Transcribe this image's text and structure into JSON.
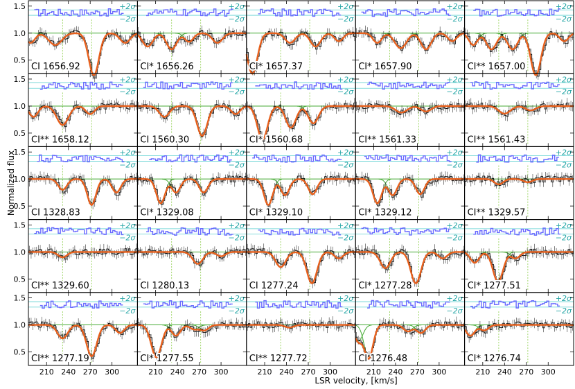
{
  "chart_data": {
    "type": "line",
    "xlabel": "LSR velocity, [km/s]",
    "ylabel": "Normalized flux",
    "xlim": [
      185,
      335
    ],
    "ylim": [
      0.25,
      1.6
    ],
    "xticks": [
      "210",
      "240",
      "270",
      "300"
    ],
    "yticks": [
      "0.5",
      "1.0",
      "1.5"
    ],
    "sigma_labels": [
      "+2σ",
      "−2σ"
    ],
    "component_velocities": [
      232,
      272
    ],
    "grid": false,
    "colors": {
      "data": "#000000",
      "fit": "#e8601c",
      "components": "#44aa33",
      "residuals": "#6a6aff",
      "sigma_lines": "#5fd0d0",
      "markers": "#88cc44"
    },
    "panels": [
      {
        "label": "CI 1656.92",
        "lines": [
          {
            "v": 222,
            "d": 0.22,
            "w": 9
          },
          {
            "v": 275,
            "d": 0.78,
            "w": 7
          },
          {
            "v": 188,
            "d": 0.18,
            "w": 6
          },
          {
            "v": 318,
            "d": 0.18,
            "w": 7
          }
        ]
      },
      {
        "label": "CI* 1656.26",
        "lines": [
          {
            "v": 199,
            "d": 0.25,
            "w": 7
          },
          {
            "v": 232,
            "d": 0.3,
            "w": 7
          },
          {
            "v": 256,
            "d": 0.16,
            "w": 6
          },
          {
            "v": 295,
            "d": 0.18,
            "w": 7
          }
        ]
      },
      {
        "label": "CI* 1657.37",
        "lines": [
          {
            "v": 193,
            "d": 0.75,
            "w": 7
          },
          {
            "v": 245,
            "d": 0.18,
            "w": 7
          },
          {
            "v": 280,
            "d": 0.25,
            "w": 7
          },
          {
            "v": 312,
            "d": 0.15,
            "w": 6
          }
        ]
      },
      {
        "label": "CI* 1657.90",
        "lines": [
          {
            "v": 215,
            "d": 0.18,
            "w": 6
          },
          {
            "v": 247,
            "d": 0.28,
            "w": 8
          },
          {
            "v": 282,
            "d": 0.3,
            "w": 7
          },
          {
            "v": 318,
            "d": 0.15,
            "w": 6
          }
        ]
      },
      {
        "label": "CI** 1657.00",
        "lines": [
          {
            "v": 197,
            "d": 0.22,
            "w": 6
          },
          {
            "v": 222,
            "d": 0.3,
            "w": 7
          },
          {
            "v": 251,
            "d": 0.3,
            "w": 7
          },
          {
            "v": 283,
            "d": 0.78,
            "w": 7
          },
          {
            "v": 322,
            "d": 0.15,
            "w": 6
          }
        ]
      },
      {
        "label": "CI** 1658.12",
        "lines": [
          {
            "v": 192,
            "d": 0.2,
            "w": 6
          },
          {
            "v": 232,
            "d": 0.35,
            "w": 8
          },
          {
            "v": 270,
            "d": 0.15,
            "w": 6
          }
        ]
      },
      {
        "label": "CI 1560.30",
        "lines": [
          {
            "v": 222,
            "d": 0.2,
            "w": 7
          },
          {
            "v": 274,
            "d": 0.55,
            "w": 7
          },
          {
            "v": 320,
            "d": 0.15,
            "w": 6
          }
        ]
      },
      {
        "label": "CI* 1560.68",
        "lines": [
          {
            "v": 207,
            "d": 0.62,
            "w": 7
          },
          {
            "v": 246,
            "d": 0.4,
            "w": 7
          },
          {
            "v": 277,
            "d": 0.32,
            "w": 7
          }
        ]
      },
      {
        "label": "CI** 1561.33",
        "lines": [
          {
            "v": 248,
            "d": 0.12,
            "w": 8
          },
          {
            "v": 282,
            "d": 0.1,
            "w": 7
          }
        ]
      },
      {
        "label": "CI** 1561.43",
        "lines": [
          {
            "v": 240,
            "d": 0.14,
            "w": 8
          },
          {
            "v": 276,
            "d": 0.08,
            "w": 7
          }
        ]
      },
      {
        "label": "CI 1328.83",
        "lines": [
          {
            "v": 232,
            "d": 0.2,
            "w": 6
          },
          {
            "v": 272,
            "d": 0.48,
            "w": 6
          },
          {
            "v": 306,
            "d": 0.25,
            "w": 6
          }
        ]
      },
      {
        "label": "CI* 1329.08",
        "lines": [
          {
            "v": 217,
            "d": 0.45,
            "w": 6
          },
          {
            "v": 238,
            "d": 0.25,
            "w": 6
          },
          {
            "v": 276,
            "d": 0.25,
            "w": 6
          }
        ]
      },
      {
        "label": "CI* 1329.10",
        "lines": [
          {
            "v": 215,
            "d": 0.48,
            "w": 6
          },
          {
            "v": 238,
            "d": 0.3,
            "w": 6
          },
          {
            "v": 276,
            "d": 0.28,
            "w": 6
          }
        ]
      },
      {
        "label": "CI* 1329.12",
        "lines": [
          {
            "v": 215,
            "d": 0.45,
            "w": 6
          },
          {
            "v": 236,
            "d": 0.3,
            "w": 6
          },
          {
            "v": 274,
            "d": 0.28,
            "w": 6
          }
        ]
      },
      {
        "label": "CI** 1329.57",
        "lines": [
          {
            "v": 232,
            "d": 0.1,
            "w": 6
          },
          {
            "v": 272,
            "d": 0.06,
            "w": 6
          }
        ]
      },
      {
        "label": "CI** 1329.60",
        "lines": [
          {
            "v": 232,
            "d": 0.1,
            "w": 6
          }
        ]
      },
      {
        "label": "CI 1280.13",
        "lines": [
          {
            "v": 268,
            "d": 0.22,
            "w": 7
          },
          {
            "v": 300,
            "d": 0.08,
            "w": 6
          }
        ]
      },
      {
        "label": "CI 1277.24",
        "lines": [
          {
            "v": 232,
            "d": 0.28,
            "w": 7
          },
          {
            "v": 275,
            "d": 0.58,
            "w": 7
          },
          {
            "v": 312,
            "d": 0.12,
            "w": 6
          }
        ]
      },
      {
        "label": "CI* 1277.28",
        "lines": [
          {
            "v": 226,
            "d": 0.3,
            "w": 7
          },
          {
            "v": 268,
            "d": 0.58,
            "w": 7
          },
          {
            "v": 305,
            "d": 0.12,
            "w": 6
          }
        ]
      },
      {
        "label": "CI* 1277.51",
        "lines": [
          {
            "v": 199,
            "d": 0.2,
            "w": 6
          },
          {
            "v": 231,
            "d": 0.55,
            "w": 7
          },
          {
            "v": 255,
            "d": 0.12,
            "w": 6
          }
        ]
      },
      {
        "label": "CI** 1277.19",
        "lines": [
          {
            "v": 232,
            "d": 0.25,
            "w": 7
          },
          {
            "v": 272,
            "d": 0.58,
            "w": 7
          },
          {
            "v": 311,
            "d": 0.15,
            "w": 6
          }
        ]
      },
      {
        "label": "CI* 1277.55",
        "lines": [
          {
            "v": 211,
            "d": 0.6,
            "w": 7
          },
          {
            "v": 238,
            "d": 0.2,
            "w": 6
          },
          {
            "v": 263,
            "d": 0.08,
            "w": 6
          },
          {
            "v": 277,
            "d": 0.1,
            "w": 6
          }
        ]
      },
      {
        "label": "CI** 1277.72",
        "lines": [
          {
            "v": 244,
            "d": 0.05,
            "w": 6
          }
        ]
      },
      {
        "label": "CI 1276.48",
        "lines": [
          {
            "v": 203,
            "d": 0.62,
            "w": 6
          },
          {
            "v": 189,
            "d": 0.3,
            "w": 6
          },
          {
            "v": 257,
            "d": 0.12,
            "w": 6
          },
          {
            "v": 275,
            "d": 0.15,
            "w": 6
          }
        ]
      },
      {
        "label": "CI* 1276.74",
        "lines": [
          {
            "v": 193,
            "d": 0.2,
            "w": 6
          },
          {
            "v": 212,
            "d": 0.1,
            "w": 6
          }
        ]
      }
    ]
  }
}
